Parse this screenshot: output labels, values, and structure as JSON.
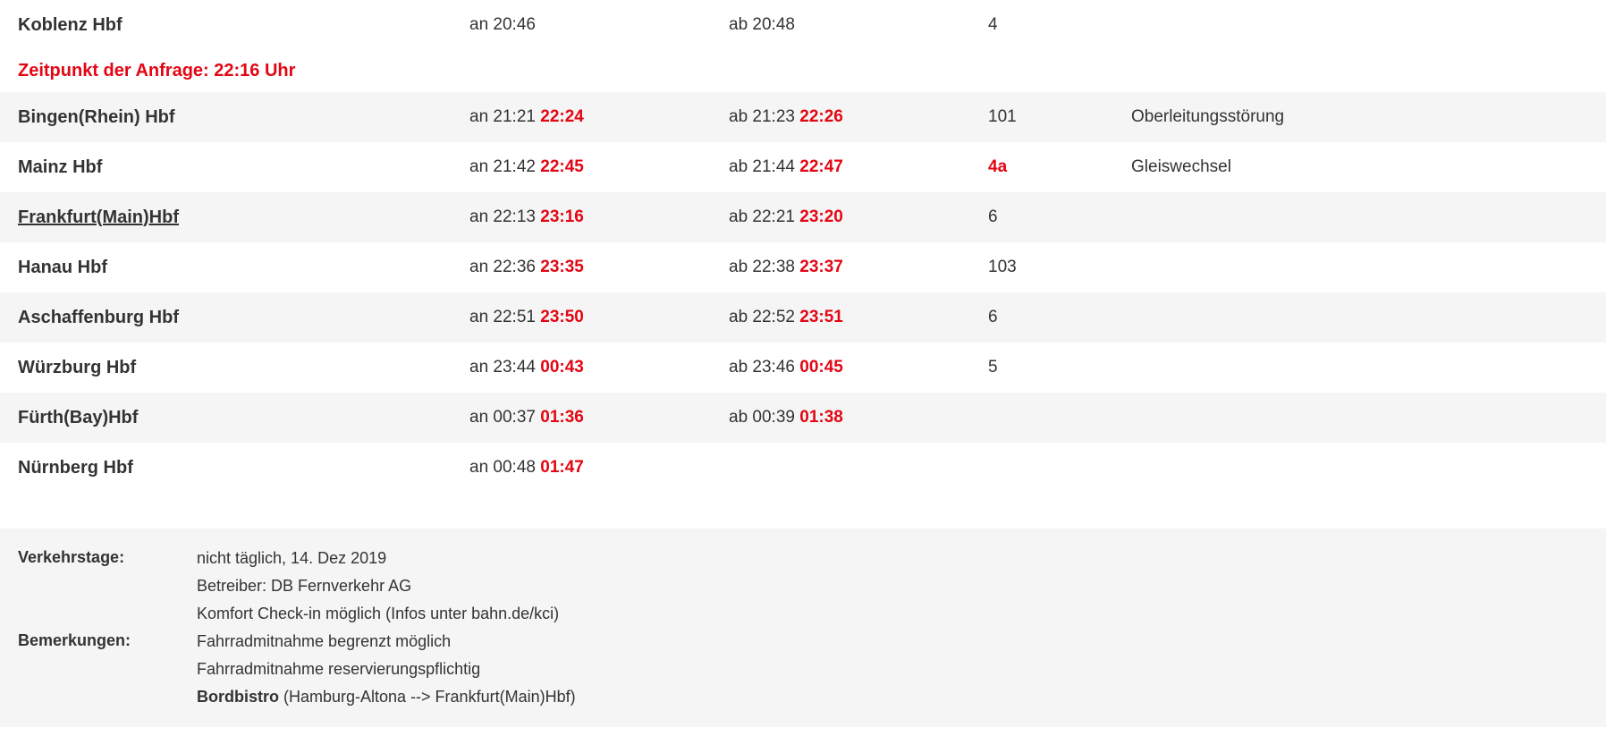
{
  "request_time_label": "Zeitpunkt der Anfrage: 22:16 Uhr",
  "stops": [
    {
      "station": "Koblenz Hbf",
      "underlined": false,
      "arr_prefix": "an",
      "arr_sched": "20:46",
      "arr_delay": "",
      "dep_prefix": "ab",
      "dep_sched": "20:48",
      "dep_delay": "",
      "platform": "4",
      "platform_changed": false,
      "note": "",
      "bg": "even"
    },
    {
      "station": "Bingen(Rhein) Hbf",
      "underlined": false,
      "arr_prefix": "an",
      "arr_sched": "21:21",
      "arr_delay": "22:24",
      "dep_prefix": "ab",
      "dep_sched": "21:23",
      "dep_delay": "22:26",
      "platform": "101",
      "platform_changed": false,
      "note": "Oberleitungsstörung",
      "bg": "odd"
    },
    {
      "station": "Mainz Hbf",
      "underlined": false,
      "arr_prefix": "an",
      "arr_sched": "21:42",
      "arr_delay": "22:45",
      "dep_prefix": "ab",
      "dep_sched": "21:44",
      "dep_delay": "22:47",
      "platform": "4a",
      "platform_changed": true,
      "note": "Gleiswechsel",
      "bg": "even"
    },
    {
      "station": "Frankfurt(Main)Hbf",
      "underlined": true,
      "arr_prefix": "an",
      "arr_sched": "22:13",
      "arr_delay": "23:16",
      "dep_prefix": "ab",
      "dep_sched": "22:21",
      "dep_delay": "23:20",
      "platform": "6",
      "platform_changed": false,
      "note": "",
      "bg": "odd"
    },
    {
      "station": "Hanau Hbf",
      "underlined": false,
      "arr_prefix": "an",
      "arr_sched": "22:36",
      "arr_delay": "23:35",
      "dep_prefix": "ab",
      "dep_sched": "22:38",
      "dep_delay": "23:37",
      "platform": "103",
      "platform_changed": false,
      "note": "",
      "bg": "even"
    },
    {
      "station": "Aschaffenburg Hbf",
      "underlined": false,
      "arr_prefix": "an",
      "arr_sched": "22:51",
      "arr_delay": "23:50",
      "dep_prefix": "ab",
      "dep_sched": "22:52",
      "dep_delay": "23:51",
      "platform": "6",
      "platform_changed": false,
      "note": "",
      "bg": "odd"
    },
    {
      "station": "Würzburg Hbf",
      "underlined": false,
      "arr_prefix": "an",
      "arr_sched": "23:44",
      "arr_delay": "00:43",
      "dep_prefix": "ab",
      "dep_sched": "23:46",
      "dep_delay": "00:45",
      "platform": "5",
      "platform_changed": false,
      "note": "",
      "bg": "even"
    },
    {
      "station": "Fürth(Bay)Hbf",
      "underlined": false,
      "arr_prefix": "an",
      "arr_sched": "00:37",
      "arr_delay": "01:36",
      "dep_prefix": "ab",
      "dep_sched": "00:39",
      "dep_delay": "01:38",
      "platform": "",
      "platform_changed": false,
      "note": "",
      "bg": "odd"
    },
    {
      "station": "Nürnberg Hbf",
      "underlined": false,
      "arr_prefix": "an",
      "arr_sched": "00:48",
      "arr_delay": "01:47",
      "dep_prefix": "",
      "dep_sched": "",
      "dep_delay": "",
      "platform": "",
      "platform_changed": false,
      "note": "",
      "bg": "even"
    }
  ],
  "footer": {
    "verkehrstage_label": "Verkehrstage:",
    "verkehrstage_value": "nicht täglich, 14. Dez 2019",
    "bemerkungen_label": "Bemerkungen:",
    "betreiber": "Betreiber: DB Fernverkehr AG",
    "komfort": "Komfort Check-in möglich (Infos unter bahn.de/kci)",
    "fahrrad1": "Fahrradmitnahme begrenzt möglich",
    "fahrrad2": "Fahrradmitnahme reservierungspflichtig",
    "bordbistro_bold": "Bordbistro",
    "bordbistro_rest": " (Hamburg-Altona --> Frankfurt(Main)Hbf)"
  },
  "colors": {
    "text": "#333333",
    "delay": "#e30613",
    "odd_bg": "#f5f5f5",
    "even_bg": "#ffffff"
  }
}
